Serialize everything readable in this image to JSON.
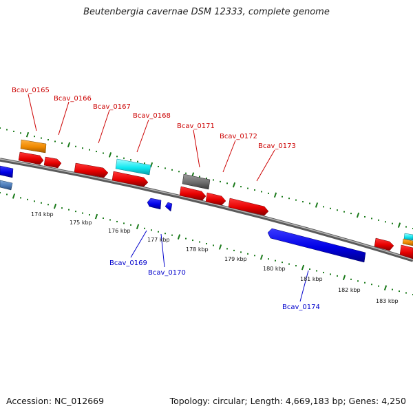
{
  "title": "Beutenbergia cavernae DSM 12333, complete genome",
  "footer": {
    "accession": "Accession: NC_012669",
    "summary": "Topology: circular; Length: 4,669,183 bp; Genes: 4,250"
  },
  "colors": {
    "forward_label": "#cc0000",
    "reverse_label": "#0000cc",
    "tick": "#1a7a1a",
    "backbone": "#808080"
  },
  "gene_labels_forward": [
    "Bcav_0165",
    "Bcav_0166",
    "Bcav_0167",
    "Bcav_0168",
    "Bcav_0171",
    "Bcav_0172",
    "Bcav_0173"
  ],
  "gene_labels_reverse": [
    "Bcav_0169",
    "Bcav_0170",
    "Bcav_0174"
  ],
  "kbp_labels": [
    "174 kbp",
    "175 kbp",
    "176 kbp",
    "177 kbp",
    "178 kbp",
    "179 kbp",
    "180 kbp",
    "181 kbp",
    "182 kbp",
    "183 kbp"
  ]
}
